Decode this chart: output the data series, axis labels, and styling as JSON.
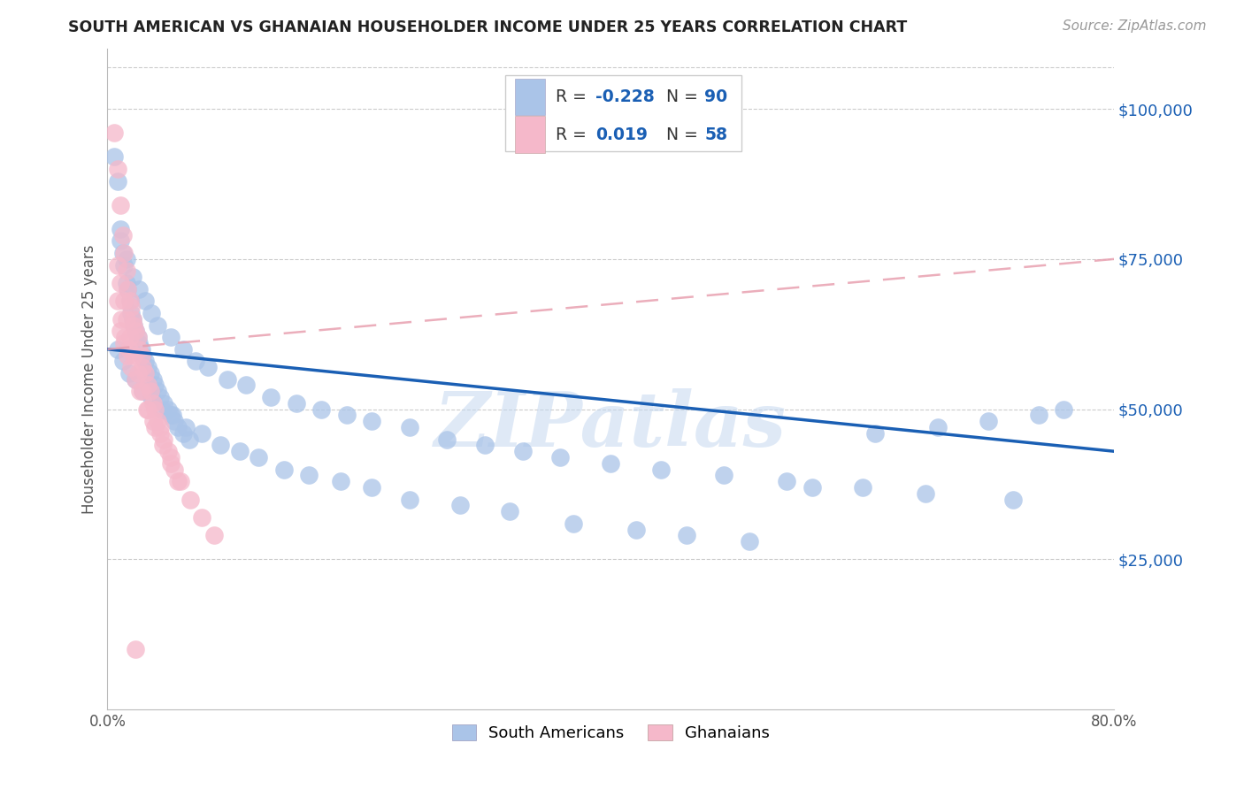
{
  "title": "SOUTH AMERICAN VS GHANAIAN HOUSEHOLDER INCOME UNDER 25 YEARS CORRELATION CHART",
  "source_text": "Source: ZipAtlas.com",
  "ylabel": "Householder Income Under 25 years",
  "xlim": [
    0.0,
    0.8
  ],
  "ylim": [
    0,
    110000
  ],
  "yticks": [
    25000,
    50000,
    75000,
    100000
  ],
  "ytick_labels": [
    "$25,000",
    "$50,000",
    "$75,000",
    "$100,000"
  ],
  "xticks": [
    0.0,
    0.16,
    0.32,
    0.48,
    0.64,
    0.8
  ],
  "xtick_labels": [
    "0.0%",
    "",
    "",
    "",
    "",
    "80.0%"
  ],
  "background_color": "#ffffff",
  "grid_color": "#cccccc",
  "south_american_color": "#aac4e8",
  "ghanaian_color": "#f5b8ca",
  "south_american_line_color": "#1a5fb4",
  "ghanaian_line_color": "#e8a0b0",
  "text_blue": "#1a5fb4",
  "watermark_text": "ZIPatlas",
  "sa_line_y0": 60000,
  "sa_line_y1": 43000,
  "gh_line_y0": 60000,
  "gh_line_y1": 75000,
  "sa_x": [
    0.005,
    0.008,
    0.01,
    0.012,
    0.013,
    0.015,
    0.016,
    0.018,
    0.019,
    0.02,
    0.021,
    0.022,
    0.024,
    0.025,
    0.027,
    0.028,
    0.03,
    0.032,
    0.034,
    0.036,
    0.038,
    0.04,
    0.042,
    0.045,
    0.048,
    0.05,
    0.053,
    0.056,
    0.06,
    0.065,
    0.01,
    0.015,
    0.02,
    0.025,
    0.03,
    0.035,
    0.04,
    0.05,
    0.06,
    0.07,
    0.08,
    0.095,
    0.11,
    0.13,
    0.15,
    0.17,
    0.19,
    0.21,
    0.24,
    0.27,
    0.3,
    0.33,
    0.36,
    0.4,
    0.44,
    0.49,
    0.54,
    0.6,
    0.65,
    0.72,
    0.008,
    0.012,
    0.017,
    0.022,
    0.028,
    0.035,
    0.043,
    0.052,
    0.062,
    0.075,
    0.09,
    0.105,
    0.12,
    0.14,
    0.16,
    0.185,
    0.21,
    0.24,
    0.28,
    0.32,
    0.37,
    0.42,
    0.46,
    0.51,
    0.56,
    0.61,
    0.66,
    0.7,
    0.74,
    0.76
  ],
  "sa_y": [
    92000,
    88000,
    80000,
    76000,
    74000,
    71000,
    70000,
    68000,
    66000,
    65000,
    64000,
    63000,
    62000,
    61000,
    60000,
    59000,
    58000,
    57000,
    56000,
    55000,
    54000,
    53000,
    52000,
    51000,
    50000,
    49000,
    48000,
    47000,
    46000,
    45000,
    78000,
    75000,
    72000,
    70000,
    68000,
    66000,
    64000,
    62000,
    60000,
    58000,
    57000,
    55000,
    54000,
    52000,
    51000,
    50000,
    49000,
    48000,
    47000,
    45000,
    44000,
    43000,
    42000,
    41000,
    40000,
    39000,
    38000,
    37000,
    36000,
    35000,
    60000,
    58000,
    56000,
    55000,
    53000,
    52000,
    50000,
    49000,
    47000,
    46000,
    44000,
    43000,
    42000,
    40000,
    39000,
    38000,
    37000,
    35000,
    34000,
    33000,
    31000,
    30000,
    29000,
    28000,
    37000,
    46000,
    47000,
    48000,
    49000,
    50000
  ],
  "gh_x": [
    0.005,
    0.008,
    0.01,
    0.012,
    0.013,
    0.015,
    0.016,
    0.018,
    0.019,
    0.02,
    0.021,
    0.022,
    0.024,
    0.025,
    0.027,
    0.028,
    0.03,
    0.032,
    0.034,
    0.036,
    0.038,
    0.04,
    0.042,
    0.045,
    0.048,
    0.05,
    0.053,
    0.056,
    0.008,
    0.01,
    0.013,
    0.015,
    0.018,
    0.021,
    0.024,
    0.028,
    0.032,
    0.038,
    0.044,
    0.05,
    0.058,
    0.066,
    0.075,
    0.085,
    0.01,
    0.013,
    0.016,
    0.019,
    0.022,
    0.026,
    0.031,
    0.036,
    0.042,
    0.008,
    0.011,
    0.014,
    0.017,
    0.022
  ],
  "gh_y": [
    96000,
    90000,
    84000,
    79000,
    76000,
    73000,
    70000,
    68000,
    67000,
    65000,
    64000,
    63000,
    62000,
    60000,
    59000,
    57000,
    56000,
    54000,
    53000,
    51000,
    50000,
    48000,
    47000,
    45000,
    43000,
    42000,
    40000,
    38000,
    74000,
    71000,
    68000,
    65000,
    62000,
    59000,
    56000,
    53000,
    50000,
    47000,
    44000,
    41000,
    38000,
    35000,
    32000,
    29000,
    63000,
    61000,
    59000,
    57000,
    55000,
    53000,
    50000,
    48000,
    46000,
    68000,
    65000,
    62000,
    60000,
    10000
  ]
}
